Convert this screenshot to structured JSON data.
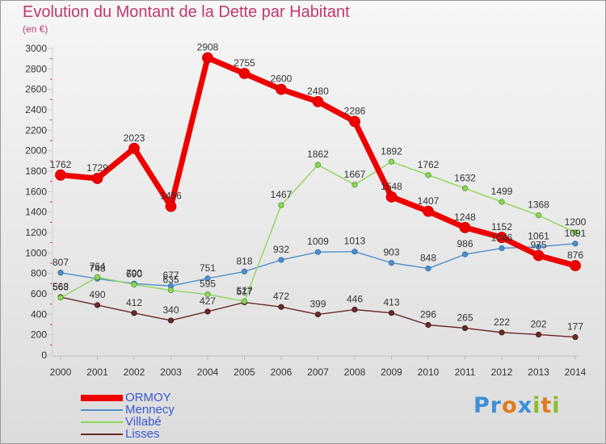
{
  "title": "Evolution du Montant de la Dette par Habitant",
  "subtitle": "(en €)",
  "brand": {
    "text": "Proxiti",
    "letters": [
      {
        "ch": "P",
        "color": "#3d8fd6"
      },
      {
        "ch": "r",
        "color": "#3d8fd6"
      },
      {
        "ch": "o",
        "color": "#e07a1e"
      },
      {
        "ch": "x",
        "color": "#3d8fd6"
      },
      {
        "ch": "i",
        "color": "#8abd2f"
      },
      {
        "ch": "t",
        "color": "#e07a1e"
      },
      {
        "ch": "i",
        "color": "#8abd2f"
      }
    ]
  },
  "chart_data": {
    "type": "line",
    "title": "Evolution du Montant de la Dette par Habitant",
    "ylabel": "(en €)",
    "xlabel": "",
    "x": [
      "2000",
      "2001",
      "2002",
      "2003",
      "2004",
      "2005",
      "2006",
      "2007",
      "2008",
      "2009",
      "2010",
      "2011",
      "2012",
      "2013",
      "2014"
    ],
    "ylim": [
      0,
      3000
    ],
    "yticks": [
      0,
      200,
      400,
      600,
      800,
      1000,
      1200,
      1400,
      1600,
      1800,
      2000,
      2200,
      2400,
      2600,
      2800,
      3000
    ],
    "grid": false,
    "legend_position": "bottom-left",
    "series": [
      {
        "name": "Lisses",
        "color": "#6b2a2a",
        "values": [
          568,
          490,
          412,
          340,
          427,
          517,
          472,
          399,
          446,
          413,
          296,
          265,
          222,
          202,
          177
        ]
      },
      {
        "name": "Mennecy",
        "color": "#4f8fcc",
        "values": [
          807,
          748,
          700,
          677,
          751,
          818,
          932,
          1009,
          1013,
          903,
          848,
          986,
          1046,
          1061,
          1091
        ]
      },
      {
        "name": "Villabé",
        "color": "#8fd65a",
        "values": [
          563,
          764,
          690,
          635,
          595,
          527,
          1467,
          1862,
          1667,
          1892,
          1762,
          1632,
          1499,
          1368,
          1200
        ]
      },
      {
        "name": "ORMOY",
        "color": "#ee0000",
        "values": [
          1762,
          1729,
          2023,
          1456,
          2908,
          2755,
          2600,
          2480,
          2286,
          1548,
          1407,
          1248,
          1152,
          975,
          876
        ]
      }
    ]
  }
}
